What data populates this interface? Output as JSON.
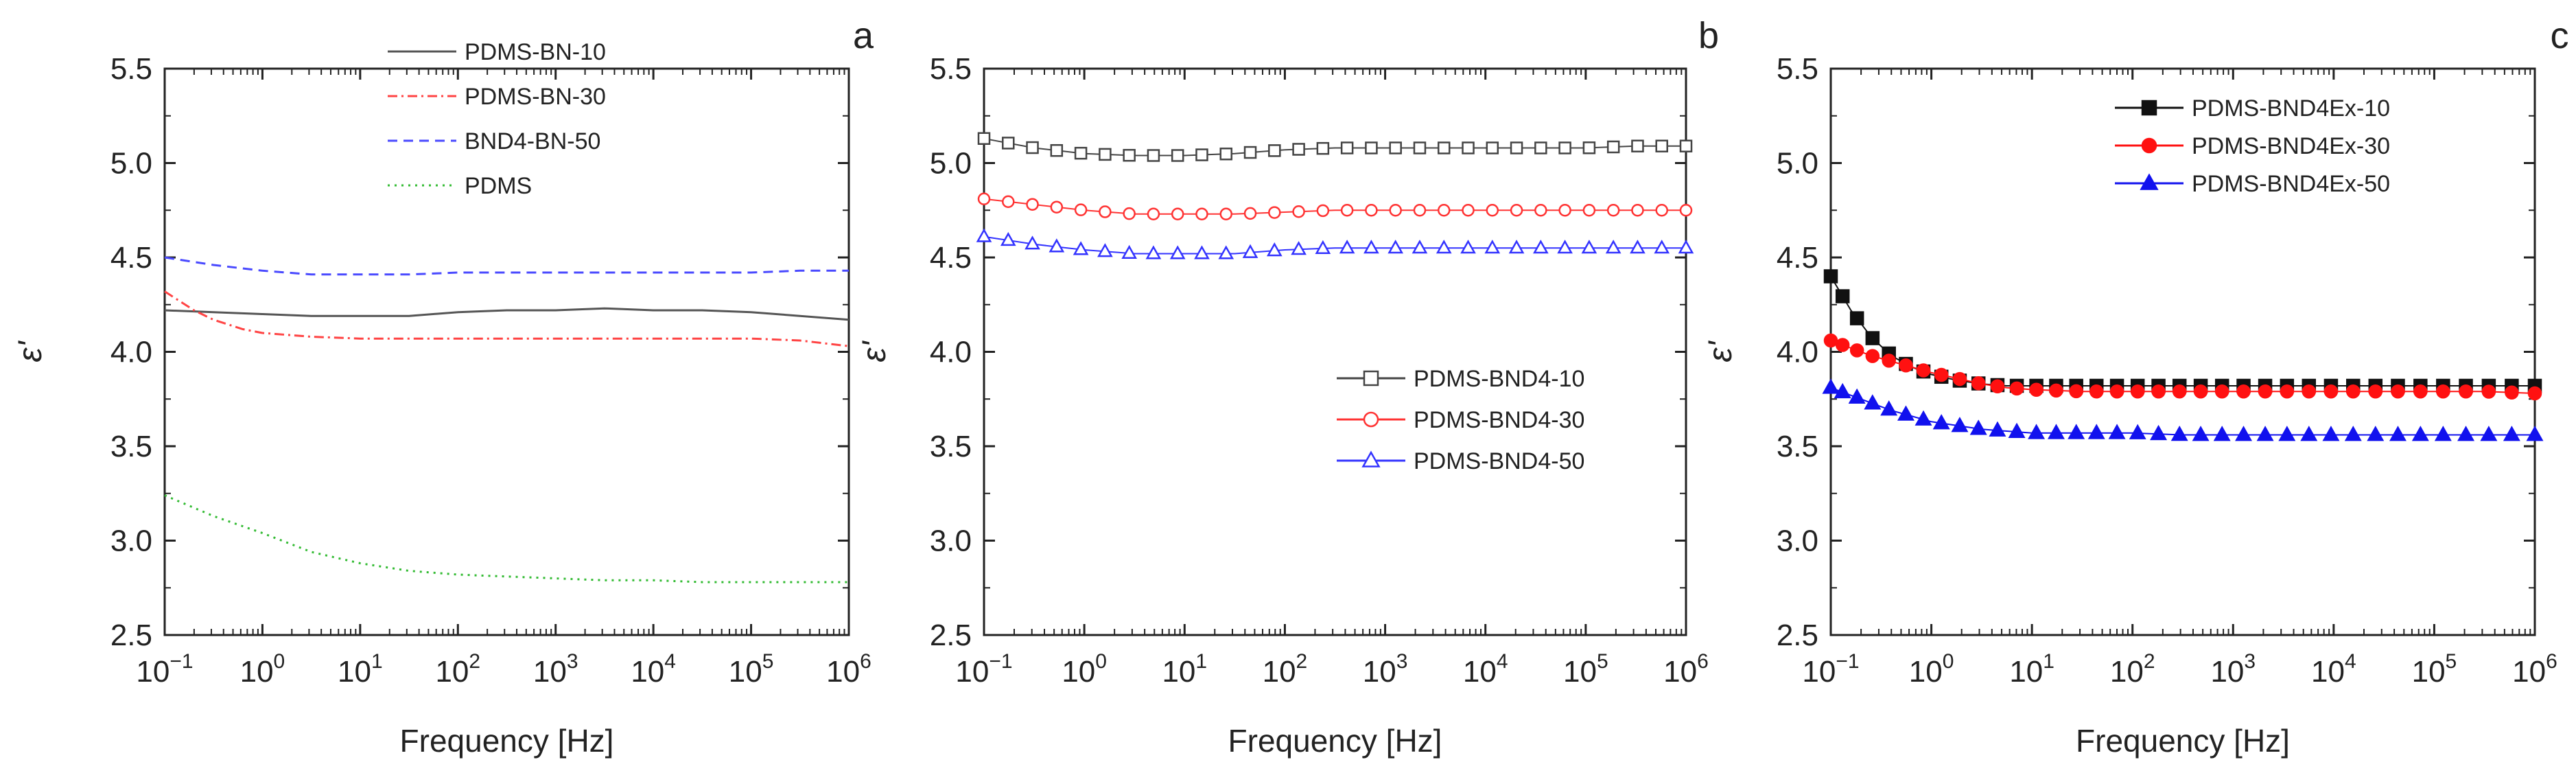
{
  "chart_data": [
    {
      "type": "line",
      "panel_label": "a",
      "xlabel": "Frequency [Hz]",
      "ylabel": "ε'",
      "xscale": "log",
      "xlim_exp": [
        -1,
        6
      ],
      "ylim": [
        2.5,
        5.5
      ],
      "xticks": [
        {
          "base": "10",
          "exp": "−1"
        },
        {
          "base": "10",
          "exp": "0"
        },
        {
          "base": "10",
          "exp": "1"
        },
        {
          "base": "10",
          "exp": "2"
        },
        {
          "base": "10",
          "exp": "3"
        },
        {
          "base": "10",
          "exp": "4"
        },
        {
          "base": "10",
          "exp": "5"
        },
        {
          "base": "10",
          "exp": "6"
        }
      ],
      "yticks": [
        "2.5",
        "3.0",
        "3.5",
        "4.0",
        "4.5",
        "5.0",
        "5.5"
      ],
      "legend_position": "top-center",
      "series": [
        {
          "name": "PDMS-BN-10",
          "color": "#555555",
          "dash": "solid",
          "marker": "none",
          "x": [
            -1,
            -0.5,
            0,
            0.5,
            1,
            1.5,
            2,
            2.5,
            3,
            3.5,
            4,
            4.5,
            5,
            5.5,
            6
          ],
          "y": [
            4.22,
            4.21,
            4.2,
            4.19,
            4.19,
            4.19,
            4.21,
            4.22,
            4.22,
            4.23,
            4.22,
            4.22,
            4.21,
            4.19,
            4.17
          ]
        },
        {
          "name": "PDMS-BN-30",
          "color": "#ff4444",
          "dash": "dashdot",
          "marker": "none",
          "x": [
            -1,
            -0.7,
            -0.5,
            -0.2,
            0,
            0.5,
            1,
            1.5,
            2,
            2.5,
            3,
            3.5,
            4,
            4.5,
            5,
            5.5,
            6
          ],
          "y": [
            4.32,
            4.22,
            4.17,
            4.12,
            4.1,
            4.08,
            4.07,
            4.07,
            4.07,
            4.07,
            4.07,
            4.07,
            4.07,
            4.07,
            4.07,
            4.06,
            4.03
          ]
        },
        {
          "name": "BND4-BN-50",
          "color": "#4a4aff",
          "dash": "dashed",
          "marker": "none",
          "x": [
            -1,
            -0.5,
            0,
            0.5,
            1,
            1.5,
            2,
            2.5,
            3,
            3.5,
            4,
            4.5,
            5,
            5.5,
            6
          ],
          "y": [
            4.5,
            4.46,
            4.43,
            4.41,
            4.41,
            4.41,
            4.42,
            4.42,
            4.42,
            4.42,
            4.42,
            4.42,
            4.42,
            4.43,
            4.43
          ]
        },
        {
          "name": "PDMS",
          "color": "#33bb33",
          "dash": "dotted",
          "marker": "none",
          "x": [
            -1,
            -0.5,
            0,
            0.5,
            1,
            1.5,
            2,
            2.5,
            3,
            3.5,
            4,
            4.5,
            5,
            5.5,
            6
          ],
          "y": [
            3.24,
            3.13,
            3.04,
            2.94,
            2.88,
            2.84,
            2.82,
            2.81,
            2.8,
            2.79,
            2.79,
            2.78,
            2.78,
            2.78,
            2.78
          ]
        }
      ]
    },
    {
      "type": "line",
      "panel_label": "b",
      "xlabel": "Frequency [Hz]",
      "ylabel": "ε'",
      "xscale": "log",
      "xlim_exp": [
        -1,
        6
      ],
      "ylim": [
        2.5,
        5.5
      ],
      "xticks": [
        {
          "base": "10",
          "exp": "−1"
        },
        {
          "base": "10",
          "exp": "0"
        },
        {
          "base": "10",
          "exp": "1"
        },
        {
          "base": "10",
          "exp": "2"
        },
        {
          "base": "10",
          "exp": "3"
        },
        {
          "base": "10",
          "exp": "4"
        },
        {
          "base": "10",
          "exp": "5"
        },
        {
          "base": "10",
          "exp": "6"
        }
      ],
      "yticks": [
        "2.5",
        "3.0",
        "3.5",
        "4.0",
        "4.5",
        "5.0",
        "5.5"
      ],
      "legend_position": "center-right",
      "series": [
        {
          "name": "PDMS-BND4-10",
          "color": "#444444",
          "dash": "solid",
          "marker": "square-open",
          "x": [
            -1,
            -0.5,
            0,
            0.5,
            1,
            1.5,
            2,
            2.5,
            3,
            3.5,
            4,
            4.5,
            5,
            5.5,
            6
          ],
          "y": [
            5.13,
            5.08,
            5.05,
            5.04,
            5.04,
            5.05,
            5.07,
            5.08,
            5.08,
            5.08,
            5.08,
            5.08,
            5.08,
            5.09,
            5.09
          ]
        },
        {
          "name": "PDMS-BND4-30",
          "color": "#ff3333",
          "dash": "solid",
          "marker": "circle-open",
          "x": [
            -1,
            -0.5,
            0,
            0.5,
            1,
            1.5,
            2,
            2.5,
            3,
            3.5,
            4,
            4.5,
            5,
            5.5,
            6
          ],
          "y": [
            4.81,
            4.78,
            4.75,
            4.73,
            4.73,
            4.73,
            4.74,
            4.75,
            4.75,
            4.75,
            4.75,
            4.75,
            4.75,
            4.75,
            4.75
          ]
        },
        {
          "name": "PDMS-BND4-50",
          "color": "#3333ff",
          "dash": "solid",
          "marker": "triangle-open",
          "x": [
            -1,
            -0.5,
            0,
            0.5,
            1,
            1.5,
            2,
            2.5,
            3,
            3.5,
            4,
            4.5,
            5,
            5.5,
            6
          ],
          "y": [
            4.61,
            4.57,
            4.54,
            4.52,
            4.52,
            4.52,
            4.54,
            4.55,
            4.55,
            4.55,
            4.55,
            4.55,
            4.55,
            4.55,
            4.55
          ]
        }
      ]
    },
    {
      "type": "line",
      "panel_label": "c",
      "xlabel": "Frequency [Hz]",
      "ylabel": "ε'",
      "xscale": "log",
      "xlim_exp": [
        -1,
        6
      ],
      "ylim": [
        2.5,
        5.5
      ],
      "xticks": [
        {
          "base": "10",
          "exp": "−1"
        },
        {
          "base": "10",
          "exp": "0"
        },
        {
          "base": "10",
          "exp": "1"
        },
        {
          "base": "10",
          "exp": "2"
        },
        {
          "base": "10",
          "exp": "3"
        },
        {
          "base": "10",
          "exp": "4"
        },
        {
          "base": "10",
          "exp": "5"
        },
        {
          "base": "10",
          "exp": "6"
        }
      ],
      "yticks": [
        "2.5",
        "3.0",
        "3.5",
        "4.0",
        "4.5",
        "5.0",
        "5.5"
      ],
      "legend_position": "top-left",
      "series": [
        {
          "name": "PDMS-BND4Ex-10",
          "color": "#111111",
          "dash": "solid",
          "marker": "square-filled",
          "x": [
            -1,
            -0.8,
            -0.6,
            -0.4,
            -0.2,
            0,
            0.25,
            0.5,
            0.75,
            1,
            1.5,
            2,
            2.5,
            3,
            3.5,
            4,
            4.5,
            5,
            5.5,
            6
          ],
          "y": [
            4.4,
            4.22,
            4.08,
            3.98,
            3.92,
            3.88,
            3.85,
            3.83,
            3.82,
            3.82,
            3.82,
            3.82,
            3.82,
            3.82,
            3.82,
            3.82,
            3.82,
            3.82,
            3.82,
            3.82
          ]
        },
        {
          "name": "PDMS-BND4Ex-30",
          "color": "#ff1111",
          "dash": "solid",
          "marker": "circle-filled",
          "x": [
            -1,
            -0.8,
            -0.6,
            -0.4,
            -0.2,
            0,
            0.25,
            0.5,
            0.75,
            1,
            1.5,
            2,
            2.5,
            3,
            3.5,
            4,
            4.5,
            5,
            5.5,
            6
          ],
          "y": [
            4.06,
            4.02,
            3.98,
            3.95,
            3.92,
            3.89,
            3.86,
            3.83,
            3.81,
            3.8,
            3.79,
            3.79,
            3.79,
            3.79,
            3.79,
            3.79,
            3.79,
            3.79,
            3.79,
            3.78
          ]
        },
        {
          "name": "PDMS-BND4Ex-50",
          "color": "#1111ee",
          "dash": "solid",
          "marker": "triangle-filled",
          "x": [
            -1,
            -0.8,
            -0.6,
            -0.4,
            -0.2,
            0,
            0.25,
            0.5,
            0.75,
            1,
            1.5,
            2,
            2.5,
            3,
            3.5,
            4,
            4.5,
            5,
            5.5,
            6
          ],
          "y": [
            3.81,
            3.77,
            3.73,
            3.69,
            3.66,
            3.63,
            3.61,
            3.59,
            3.58,
            3.57,
            3.57,
            3.57,
            3.56,
            3.56,
            3.56,
            3.56,
            3.56,
            3.56,
            3.56,
            3.56
          ]
        }
      ]
    }
  ]
}
